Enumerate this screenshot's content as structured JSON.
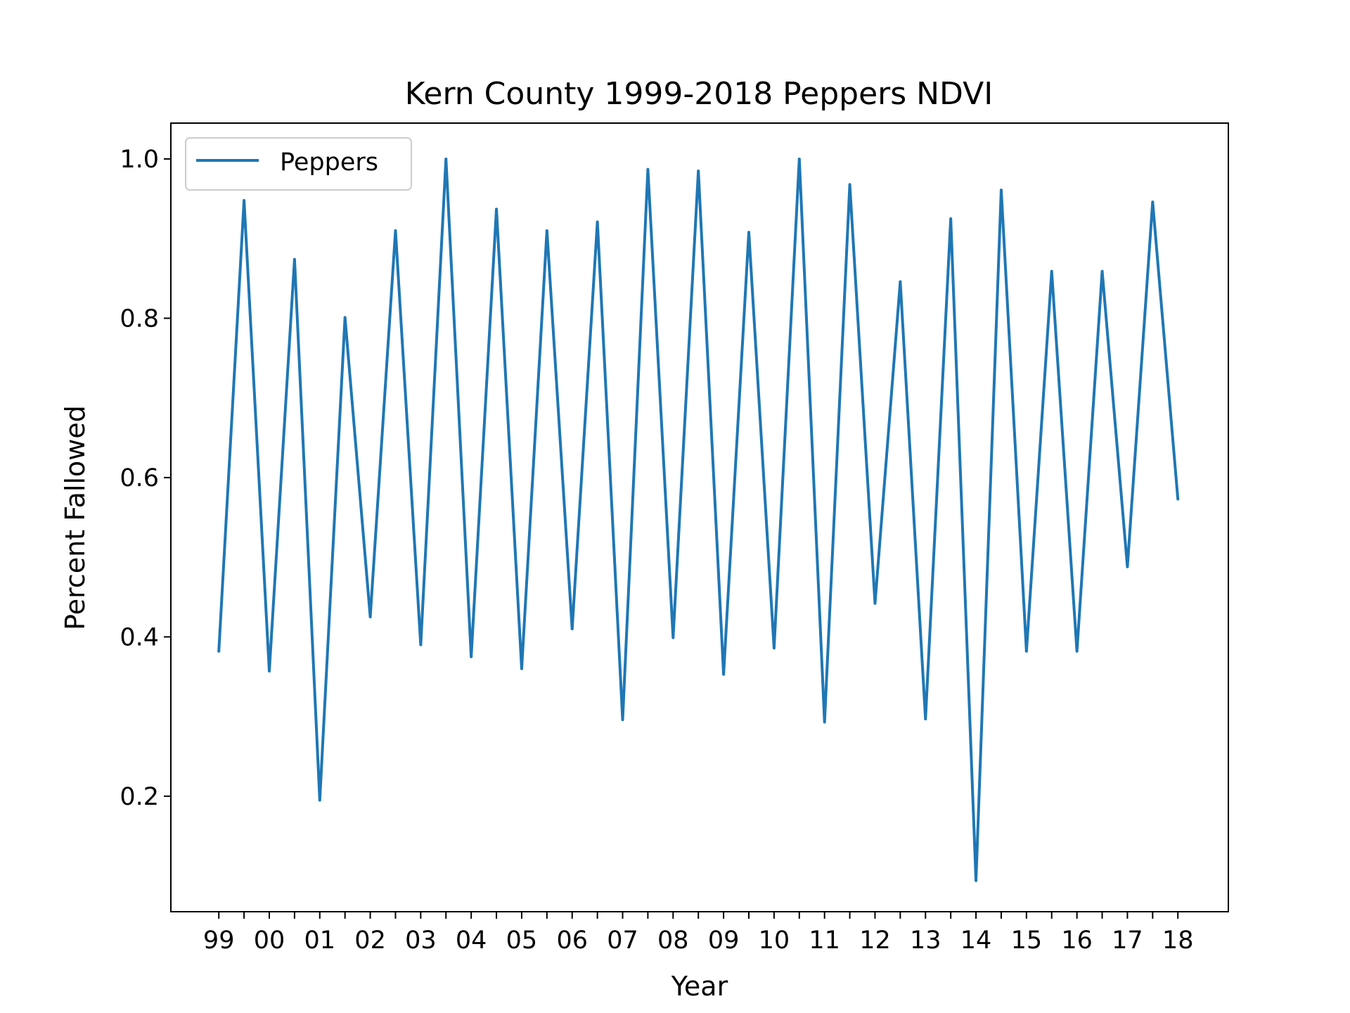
{
  "chart_data": {
    "type": "line",
    "title": "Kern County 1999-2018 Peppers NDVI",
    "xlabel": "Year",
    "ylabel": "Percent Fallowed",
    "x_tick_labels": [
      "99",
      "00",
      "01",
      "02",
      "03",
      "04",
      "05",
      "06",
      "07",
      "08",
      "09",
      "10",
      "11",
      "12",
      "13",
      "14",
      "15",
      "16",
      "17",
      "18"
    ],
    "y_ticks": [
      0.2,
      0.4,
      0.6,
      0.8,
      1.0
    ],
    "y_tick_labels": [
      "0.2",
      "0.4",
      "0.6",
      "0.8",
      "1.0"
    ],
    "xlim": [
      -0.95,
      20.0
    ],
    "ylim": [
      0.055,
      1.045
    ],
    "grid": false,
    "legend_position": "upper-left",
    "series": [
      {
        "name": "Peppers",
        "color": "#1f77b4",
        "x": [
          0,
          0.5,
          1,
          1.5,
          2,
          2.5,
          3,
          3.5,
          4,
          4.5,
          5,
          5.5,
          6,
          6.5,
          7,
          7.5,
          8,
          8.5,
          9,
          9.5,
          10,
          10.5,
          11,
          11.5,
          12,
          12.5,
          13,
          13.5,
          14,
          14.5,
          15,
          15.5,
          16,
          16.5,
          17,
          17.5,
          18,
          18.5,
          19
        ],
        "values": [
          0.382,
          0.948,
          0.357,
          0.874,
          0.195,
          0.801,
          0.425,
          0.91,
          0.39,
          1.0,
          0.375,
          0.937,
          0.36,
          0.91,
          0.41,
          0.921,
          0.296,
          0.987,
          0.399,
          0.985,
          0.353,
          0.908,
          0.386,
          1.0,
          0.293,
          0.968,
          0.442,
          0.846,
          0.297,
          0.925,
          0.094,
          0.961,
          0.382,
          0.859,
          0.382,
          0.859,
          0.488,
          0.946,
          0.573
        ]
      }
    ]
  }
}
